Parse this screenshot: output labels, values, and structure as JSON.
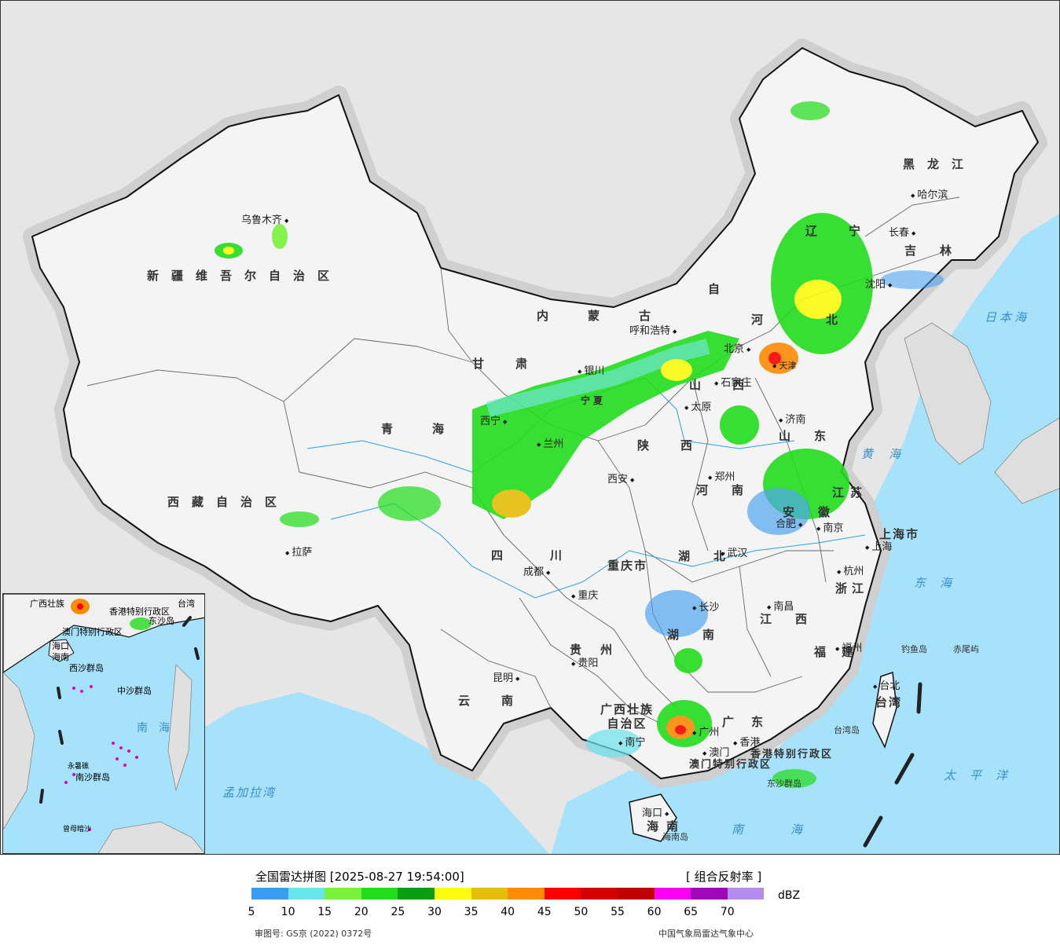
{
  "map": {
    "province_labels": [
      {
        "text": "新疆维吾尔自治区"
      },
      {
        "text": "西藏自治区"
      },
      {
        "text": "青海"
      },
      {
        "text": "甘肃"
      },
      {
        "text": "内蒙古"
      },
      {
        "text": "自"
      },
      {
        "text": "黑龙江"
      },
      {
        "text": "吉林"
      },
      {
        "text": "辽宁"
      },
      {
        "text": "河北"
      },
      {
        "text": "山西"
      },
      {
        "text": "山东"
      },
      {
        "text": "河南"
      },
      {
        "text": "陕西"
      },
      {
        "text": "宁夏"
      },
      {
        "text": "四川"
      },
      {
        "text": "重庆市"
      },
      {
        "text": "湖北"
      },
      {
        "text": "安徽"
      },
      {
        "text": "江苏"
      },
      {
        "text": "上海市"
      },
      {
        "text": "浙江"
      },
      {
        "text": "湖南"
      },
      {
        "text": "江西"
      },
      {
        "text": "福建"
      },
      {
        "text": "贵州"
      },
      {
        "text": "云南"
      },
      {
        "text": "广西壮族自治区"
      },
      {
        "text": "广东"
      },
      {
        "text": "台湾"
      },
      {
        "text": "海南"
      },
      {
        "text": "香港特别行政区"
      },
      {
        "text": "澳门特别行政区"
      }
    ],
    "cities": [
      {
        "text": "乌鲁木齐"
      },
      {
        "text": "拉萨"
      },
      {
        "text": "西宁"
      },
      {
        "text": "兰州"
      },
      {
        "text": "银川"
      },
      {
        "text": "呼和浩特"
      },
      {
        "text": "北京"
      },
      {
        "text": "天津"
      },
      {
        "text": "石家庄"
      },
      {
        "text": "太原"
      },
      {
        "text": "济南"
      },
      {
        "text": "郑州"
      },
      {
        "text": "西安"
      },
      {
        "text": "成都"
      },
      {
        "text": "重庆"
      },
      {
        "text": "武汉"
      },
      {
        "text": "合肥"
      },
      {
        "text": "南京"
      },
      {
        "text": "上海"
      },
      {
        "text": "杭州"
      },
      {
        "text": "长沙"
      },
      {
        "text": "南昌"
      },
      {
        "text": "福州"
      },
      {
        "text": "贵阳"
      },
      {
        "text": "昆明"
      },
      {
        "text": "南宁"
      },
      {
        "text": "广州"
      },
      {
        "text": "香港"
      },
      {
        "text": "澳门"
      },
      {
        "text": "海口"
      },
      {
        "text": "台北"
      },
      {
        "text": "沈阳"
      },
      {
        "text": "长春"
      },
      {
        "text": "哈尔滨"
      }
    ],
    "seas": [
      {
        "text": "日本海"
      },
      {
        "text": "黄海"
      },
      {
        "text": "东海"
      },
      {
        "text": "太平洋"
      },
      {
        "text": "南海"
      },
      {
        "text": "孟加拉湾"
      }
    ],
    "islands": [
      {
        "text": "钓鱼岛"
      },
      {
        "text": "赤尾屿"
      },
      {
        "text": "台湾岛"
      },
      {
        "text": "东沙群岛"
      },
      {
        "text": "海南岛"
      }
    ],
    "inset_labels": [
      {
        "text": "广西壮族"
      },
      {
        "text": "香港特别行政区"
      },
      {
        "text": "澳门特别行政区"
      },
      {
        "text": "东沙岛"
      },
      {
        "text": "海口"
      },
      {
        "text": "海南"
      },
      {
        "text": "西沙群岛"
      },
      {
        "text": "中沙群岛"
      },
      {
        "text": "南海"
      },
      {
        "text": "南沙群岛"
      },
      {
        "text": "台湾"
      },
      {
        "text": "永暑礁"
      },
      {
        "text": "曾母暗沙"
      }
    ]
  },
  "legend": {
    "title": "全国雷达拼图 [2025-08-27 19:54:00]",
    "product": "[ 组合反射率 ]",
    "unit": "dBZ",
    "ticks": [
      "5",
      "10",
      "15",
      "20",
      "25",
      "30",
      "35",
      "40",
      "45",
      "50",
      "55",
      "60",
      "65",
      "70"
    ],
    "colors": [
      "#3d9cf0",
      "#6ce4ec",
      "#79f23c",
      "#22dd1c",
      "#0c9e10",
      "#fcfb10",
      "#e6be0a",
      "#fb8c06",
      "#fc0000",
      "#d20000",
      "#c00000",
      "#fc00f4",
      "#9c08b4",
      "#b48ced"
    ],
    "approval_number": "审图号: GS京 (2022) 0372号",
    "agency": "中国气象局雷达气象中心"
  }
}
